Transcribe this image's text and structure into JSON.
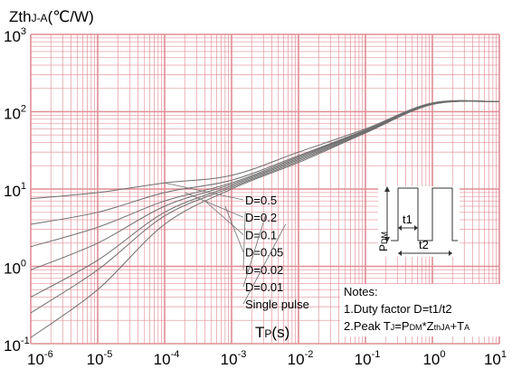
{
  "chart_data": {
    "type": "line",
    "title": "",
    "ylabel": {
      "main": "Zth",
      "sub": "J-A",
      "unit": "(℃/W)"
    },
    "xlabel": {
      "main": "T",
      "sub": "P",
      "unit": "(s)"
    },
    "x_scale": "log",
    "y_scale": "log",
    "xlim": [
      1e-06,
      10
    ],
    "ylim": [
      0.1,
      1000
    ],
    "grid": true,
    "x_ticks": [
      {
        "value": 1e-06,
        "base": "10",
        "exp": "-6"
      },
      {
        "value": 1e-05,
        "base": "10",
        "exp": "-5"
      },
      {
        "value": 0.0001,
        "base": "10",
        "exp": "-4"
      },
      {
        "value": 0.001,
        "base": "10",
        "exp": "-3"
      },
      {
        "value": 0.01,
        "base": "10",
        "exp": "-2"
      },
      {
        "value": 0.1,
        "base": "10",
        "exp": "-1"
      },
      {
        "value": 1,
        "base": "10",
        "exp": "0"
      },
      {
        "value": 10,
        "base": "10",
        "exp": "1"
      }
    ],
    "y_ticks": [
      {
        "value": 0.1,
        "base": "10",
        "exp": "-1"
      },
      {
        "value": 1,
        "base": "10",
        "exp": "0"
      },
      {
        "value": 10,
        "base": "10",
        "exp": "1"
      },
      {
        "value": 100,
        "base": "10",
        "exp": "2"
      },
      {
        "value": 1000,
        "base": "10",
        "exp": "3"
      }
    ],
    "series": [
      {
        "name": "D=0.5",
        "x": [
          1e-06,
          1e-05,
          0.0001,
          0.001,
          0.01,
          0.1,
          1,
          10
        ],
        "y": [
          7.5,
          9,
          12,
          15,
          30,
          60,
          130,
          135
        ]
      },
      {
        "name": "D=0.2",
        "x": [
          1e-06,
          1e-05,
          0.0001,
          0.001,
          0.01,
          0.1,
          1,
          10
        ],
        "y": [
          3.5,
          5,
          9,
          13,
          27,
          58,
          128,
          135
        ]
      },
      {
        "name": "D=0.1",
        "x": [
          1e-06,
          1e-05,
          0.0001,
          0.001,
          0.01,
          0.1,
          1,
          10
        ],
        "y": [
          1.8,
          3.2,
          7,
          12,
          26,
          57,
          127,
          135
        ]
      },
      {
        "name": "D=0.05",
        "x": [
          1e-06,
          1e-05,
          0.0001,
          0.001,
          0.01,
          0.1,
          1,
          10
        ],
        "y": [
          0.9,
          2,
          6,
          11.5,
          25,
          56,
          126,
          135
        ]
      },
      {
        "name": "D=0.02",
        "x": [
          1e-06,
          1e-05,
          0.0001,
          0.001,
          0.01,
          0.1,
          1,
          10
        ],
        "y": [
          0.4,
          1.2,
          5,
          11,
          24,
          55,
          125,
          135
        ]
      },
      {
        "name": "D=0.01",
        "x": [
          1e-06,
          1e-05,
          0.0001,
          0.001,
          0.01,
          0.1,
          1,
          10
        ],
        "y": [
          0.25,
          0.9,
          4.5,
          10.5,
          23,
          54,
          125,
          135
        ]
      },
      {
        "name": "Single pulse",
        "x": [
          1e-06,
          1e-05,
          0.0001,
          0.001,
          0.01,
          0.1,
          1,
          10
        ],
        "y": [
          0.12,
          0.5,
          3.5,
          10,
          22,
          53,
          124,
          135
        ]
      }
    ],
    "legend_placement": "center-bottom",
    "inset": {
      "labels": {
        "t1": "t1",
        "t2": "t2",
        "pdm_main": "P",
        "pdm_sub": "DM"
      }
    },
    "notes": {
      "title": "Notes:",
      "line1": "1.Duty factor D=t1/t2",
      "line2": {
        "p1": "2.Peak T",
        "s1": "J",
        "p2": "=P",
        "s2": "DM",
        "p3": "*Z",
        "s3": "thJA",
        "p4": "+T",
        "s4": "A"
      }
    },
    "colors": {
      "grid": "#e08d94",
      "curves": "#6e6e6e",
      "text": "#000000"
    }
  }
}
